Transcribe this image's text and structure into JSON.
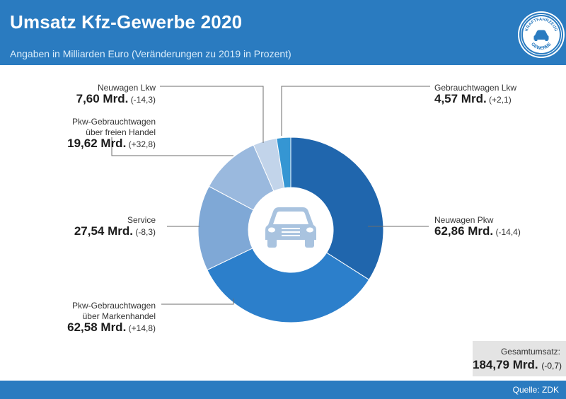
{
  "header": {
    "title": "Umsatz Kfz-Gewerbe 2020",
    "subtitle": "Angaben in Milliarden Euro (Veränderungen zu 2019 in Prozent)",
    "logo_text_top": "KRAFTFAHRZEUG",
    "logo_text_bottom": "GEWERBE"
  },
  "colors": {
    "brand": "#2a7bc0",
    "slices": [
      "#2066ad",
      "#2c7fcb",
      "#7fa8d6",
      "#9ab9de",
      "#c2d4ea",
      "#3596d3"
    ]
  },
  "chart_data": {
    "type": "pie",
    "title": "Umsatz Kfz-Gewerbe 2020",
    "unit": "Mrd. Euro",
    "categories": [
      "Neuwagen Pkw",
      "Pkw-Gebrauchtwagen über Markenhandel",
      "Service",
      "Pkw-Gebrauchtwagen über freien Handel",
      "Neuwagen Lkw",
      "Gebrauchtwagen Lkw"
    ],
    "values": [
      62.86,
      62.58,
      27.54,
      19.62,
      7.6,
      4.57
    ],
    "changes_percent": [
      -14.4,
      14.8,
      -8.3,
      32.8,
      -14.3,
      2.1
    ],
    "total": 184.79,
    "total_change": -0.7
  },
  "labels": [
    {
      "name_lines": [
        "Neuwagen Pkw"
      ],
      "value": "62,86 Mrd.",
      "change": "(-14,4)"
    },
    {
      "name_lines": [
        "Pkw-Gebrauchtwagen",
        "über Markenhandel"
      ],
      "value": "62,58 Mrd.",
      "change": "(+14,8)"
    },
    {
      "name_lines": [
        "Service"
      ],
      "value": "27,54 Mrd.",
      "change": "(-8,3)"
    },
    {
      "name_lines": [
        "Pkw-Gebrauchtwagen",
        "über freien Handel"
      ],
      "value": "19,62 Mrd.",
      "change": "(+32,8)"
    },
    {
      "name_lines": [
        "Neuwagen Lkw"
      ],
      "value": "7,60 Mrd.",
      "change": "(-14,3)"
    },
    {
      "name_lines": [
        "Gebrauchtwagen Lkw"
      ],
      "value": "4,57 Mrd.",
      "change": "(+2,1)"
    }
  ],
  "total": {
    "label": "Gesamtumsatz:",
    "value": "184,79 Mrd.",
    "change": "(-0,7)"
  },
  "footer": {
    "source": "Quelle: ZDK"
  }
}
